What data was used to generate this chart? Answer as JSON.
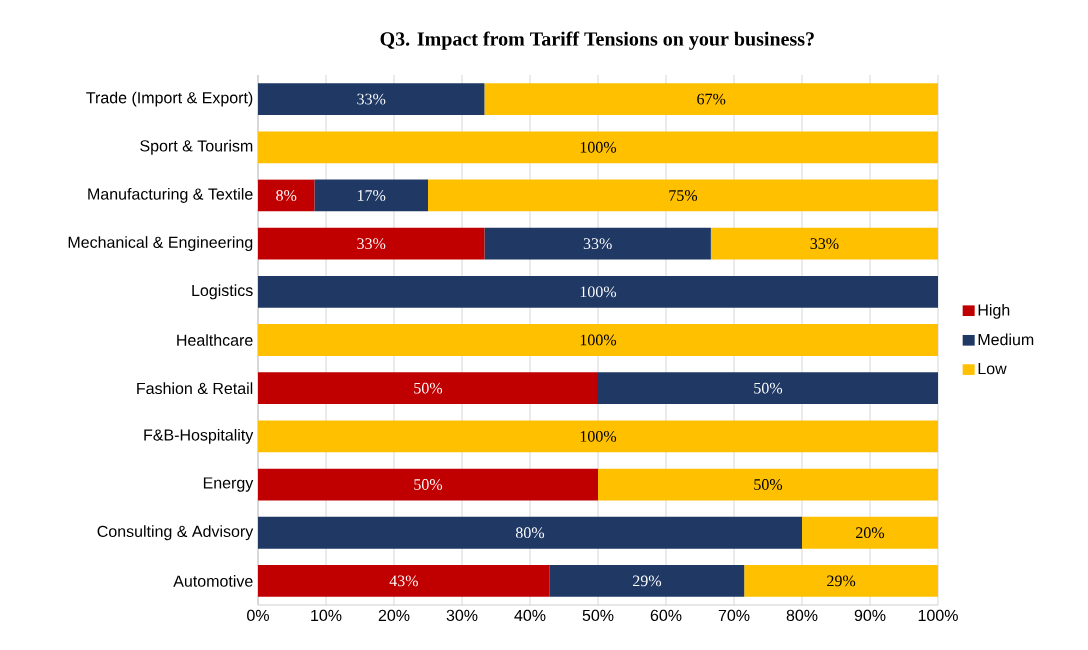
{
  "chart_data": {
    "type": "bar",
    "orientation": "horizontal",
    "stacked": true,
    "title": "Q3. Impact from Tariff Tensions on your business?",
    "categories": [
      "Trade (Import & Export)",
      "Sport & Tourism",
      "Manufacturing & Textile",
      "Mechanical & Engineering",
      "Logistics",
      "Healthcare",
      "Fashion & Retail",
      "F&B-Hospitality",
      "Energy",
      "Consulting & Advisory",
      "Automotive"
    ],
    "series": [
      {
        "name": "High",
        "color": "#c00000",
        "values": [
          0,
          0,
          8.3,
          33.3,
          0,
          0,
          50,
          0,
          50,
          0,
          42.9
        ],
        "value_labels": [
          null,
          null,
          "8%",
          "33%",
          null,
          null,
          "50%",
          null,
          "50%",
          null,
          "43%"
        ]
      },
      {
        "name": "Medium",
        "color": "#1f3864",
        "values": [
          33.3,
          0,
          16.7,
          33.3,
          100,
          0,
          50,
          0,
          0,
          80,
          28.6
        ],
        "value_labels": [
          "33%",
          null,
          "17%",
          "33%",
          "100%",
          null,
          "50%",
          null,
          null,
          "80%",
          "29%"
        ]
      },
      {
        "name": "Low",
        "color": "#ffc000",
        "values": [
          66.7,
          100,
          75,
          33.4,
          0,
          100,
          0,
          100,
          50,
          20,
          28.5
        ],
        "value_labels": [
          "67%",
          "100%",
          "75%",
          "33%",
          null,
          "100%",
          null,
          "100%",
          "50%",
          "20%",
          "29%"
        ]
      }
    ],
    "xlim": [
      0,
      100
    ],
    "xticks": [
      {
        "value": 0,
        "label": "0%"
      },
      {
        "value": 10,
        "label": "10%"
      },
      {
        "value": 20,
        "label": "20%"
      },
      {
        "value": 30,
        "label": "30%"
      },
      {
        "value": 40,
        "label": "40%"
      },
      {
        "value": 50,
        "label": "50%"
      },
      {
        "value": 60,
        "label": "60%"
      },
      {
        "value": 70,
        "label": "70%"
      },
      {
        "value": 80,
        "label": "80%"
      },
      {
        "value": 90,
        "label": "90%"
      },
      {
        "value": 100,
        "label": "100%"
      }
    ],
    "grid": "x",
    "legend": "right"
  }
}
